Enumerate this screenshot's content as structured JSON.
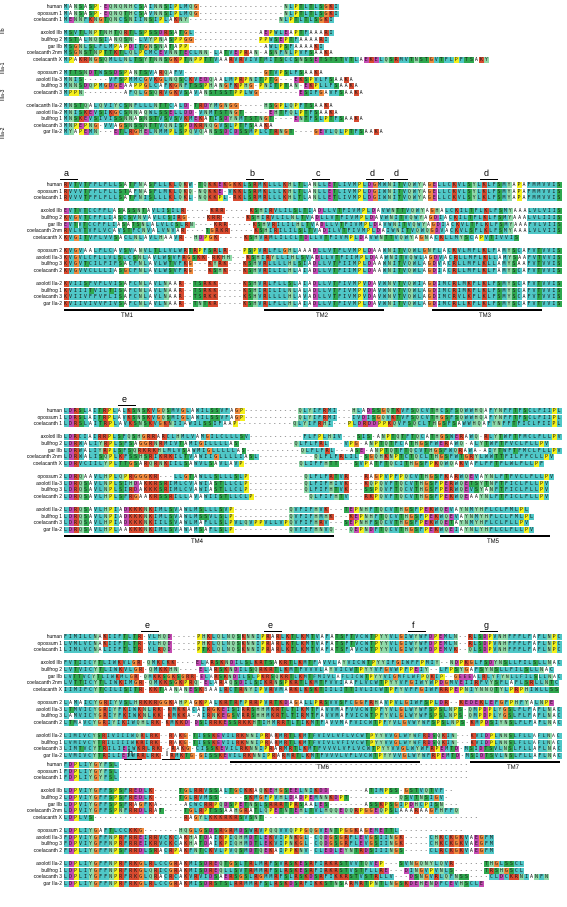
{
  "colors": {
    "hydrophobic": "#4fc7c7",
    "green": "#2fa84f",
    "orange": "#f08a3e",
    "magenta": "#c44bb2",
    "yellow": "#f4f01c",
    "red": "#d84a2f",
    "gray": "#b9b9b9"
  },
  "group_labels": [
    "IIb",
    "IIIa-1",
    "IIIa-3",
    "IIIa-2"
  ],
  "blocks": [
    {
      "rows": [
        {
          "label": "human",
          "seq": "MANSASP-EQNQNHCSAINNSIPLMQG-----------------NLPTLTLSGKI"
        },
        {
          "label": "opossum 1",
          "seq": "MANSASP-EQNQTHCSAVNNSIPLMQG-----------------NLPTLTLSGKI"
        },
        {
          "label": "coelacanth 1",
          "seq": "MENNFKNGTQNCSNIINSIPLAKNY------------------NLPTLTLSGKI"
        },
        {
          "label": "",
          "seq": ""
        },
        {
          "label": "axolotl IIb",
          "seq": "MSVTLNPTNHTQRTLSPSSDRSATGL-------------AEPWLEAPTFAAARI"
        },
        {
          "label": "bullfrog 2",
          "seq": "MSTALNQSIANQSN-LVYPNASPPGG-------------PPWSEPTFAAAARI"
        },
        {
          "label": "gar IIb",
          "seq": "MSGNLSLFLMPAPDITGNSNATAPP---------------AWLPSFAAAAKI"
        },
        {
          "label": "coelacanth 2nm",
          "seq": "MSGNSTNPTTKTLQLPCMCEVNNTECLNN-LATVEPRAN-ASNFNLPVFSAAKA"
        },
        {
          "label": "coelacanth X",
          "seq": "MPAKRNGSQMLLNLTSYTNNSGKPTNPPTTVAARVRVIVTMITSCCSNSSETSTSTVTLAEKELQSRMVTNSTGVTFLPFTSAKY"
        },
        {
          "label": "",
          "seq": ""
        },
        {
          "label": "opossum 2",
          "seq": "MTTSNDTWSSDSPANTSVARQAFV----------------GTVPSLFSAAKA"
        },
        {
          "label": "axolotl IIa-3",
          "seq": "MNIS-----VFSPMMCGVKGLNQSCKVEDQAALMPRPNITPTG---EKSPVLFSAAKA"
        },
        {
          "label": "bullfrog 3",
          "seq": "MNNSDQPMGDGEAAPPGLCAFKGNFTSSPHANGFKPHG-PNITPTAN-EKPLLFSAAKA"
        },
        {
          "label": "coelacanth 3",
          "seq": "MPPN--------AFQLGSQRVGKVSAVANSTSSTPPLWG--------ESIFGAVFSAAKA"
        },
        {
          "label": "",
          "seq": ""
        },
        {
          "label": "coelacanth IIa-2",
          "seq": "MNSTQALQVIYCSNFLLLNTTCALD-TRDYMGNGG-----HSGPLQPFTSAAKA"
        },
        {
          "label": "axolotl IIa-2",
          "seq": "MNISKEVSIKGCSNNAQWLSSELLDD-VNMTSTNGT-----EHTFQLPTFSAAKA"
        },
        {
          "label": "bullfrog 1",
          "seq": "MNSKEVSIVISSNNASNSTVSVSVKMEKATISDYNMTSTNGT----ENTFSLPTFSAAKA"
        },
        {
          "label": "coelacanth 3",
          "seq": "MNPEPNG-VVAGSNSSNTTVQNISPDKRNQGVSLPTFSAAKA"
        },
        {
          "label": "gar IIa-2",
          "seq": "MYAPEMN---ETLRGHELNMMPLSPQVQANSSDCDSSMPLCTRNGT----GEVLQLPTFSAAKA"
        }
      ]
    },
    {
      "rows": [
        {
          "label": "human",
          "seq": "RVTVTFFLFLLSATFNASFLLKLQKW-TQKKEKGKKLSRMKLLLKHLTLANLLETLIVMPLDGMWNITVQWYAGELLCKVLSYLKLFSMYAPAFMMVVIS"
        },
        {
          "label": "opossum 1",
          "seq": "RVVVTFFLFLLSTAFNASFLMKLQKQ-NQKKE-VKKLSRMKLLLKHLTLANLLETLIVMPLDGIWNITVQWYAGELLCKVLSYLKLFSMYAPAFMMVVIS"
        },
        {
          "label": "coelacanth 1",
          "seq": "RVVVTFFLFLLSATFNISLLLKLQKL-NQKKPL-RKLSRMRLLLKHLTLANLLETLIVMPLDGIWNITVQWYAGELLCKVLSYLKLFSMYAPAFMMVVIS"
        },
        {
          "label": "",
          "seq": ""
        },
        {
          "label": "axolotl IIb",
          "seq": "EVTVTCCFFLASASSNTAVLISILR-----KRR-----KSHIRVLILSLTIADLLVTFIVMPLDAVWNTTVQWYAGHALCKILTFLKLFSMYAAALVLVIIS"
        },
        {
          "label": "bullfrog 2",
          "seq": "KVGVTCFFLIASCSVNVAVLCSIRG----KRR-----KSHIRVLILNLTVADLLVTFIVMPLDAVWNITVQWYAGDIACKILTFLKLFSMYAAALVLIIIS"
        },
        {
          "label": "gar IIb",
          "seq": "EVTVTCCFFLIASATSNLALVLCSLRN----KRR-----KSHVRILILHLTVADLLVTFIVMPLDAVWNITVQWYAGDIACKVLTFLKLFSMYAAAFVLVIIS"
        },
        {
          "label": "coelacanth 2nm",
          "seq": "RVLVTVFLVCAVSTFCNVALVNVAR----TGRKR-----KSHIRILILSLTVADILVTFIVMPLDAIWNITVQWQGDVACKVLSFLKLFSMYAAALVLVIIS"
        },
        {
          "label": "coelacanth X",
          "seq": "KVGITVFLVVSACLNLAVLHAAVR--HDPGK-----KSHVRMLILCLTDLLVTFIVMPLDAVWNTTVQWYAGNACKLLMYSCAPVTIVVIS"
        },
        {
          "label": "",
          "seq": ""
        },
        {
          "label": "opossum 2",
          "seq": "KVGVAALFLCAVSVANVLTLLVLWRTRPFSRLR---PSPVRLFLGHLAAADLLVTFLVMPLDAAWNITVQWLGNFLACKVLMFLKLFAMYSCAFVTVVIS"
        },
        {
          "label": "axolotl IIa-3",
          "seq": "KVGVLCFLLVLSLCSNLAVLWSVFRGSKK-RKHH---KSHIRYLLIHLSVADLLVTFIIMPLDAAWNITVQWLAGDVACRLLMFLKLLAMYSAAFVTVVIS"
        },
        {
          "label": "bullfrog 3",
          "seq": "KVGVTCILFIFSACFNLAVLWTVFKG---KYRK---KSHVRLLLLHLSIADLLVTFIIMPLDAAWNITVQWLAGDVACRLLMFLKLLAMYSAAFVTVVIS"
        },
        {
          "label": "coelacanth 2",
          "seq": "KVGVVCLLLIASGCFNLAVLWSVFRG---KSHK---KSHVRILILHLAIADLLVTFIIMPLDAAWNITVQWLAGDIACRLLMFLKLFAMYSCAFVTVVIS"
        },
        {
          "label": "",
          "seq": ""
        },
        {
          "label": "axolotl IIa-2",
          "seq": "KVIISFVFLVISAFCNLAVLNAAR--TSRKK-----KSHVRLFLLSLAIADLLVTFIVMPVDAVWNVTVQWIAGDIMCRLMKFLKLFSMYSCAFVTVVIS"
        },
        {
          "label": "bullfrog 1",
          "seq": "KVIIITVILTISAFCNLAVLNAAR--TSRKK-----KSHIRILILNLALADLLVTFIVMPVDAVWNVTVQWLAGDIMCRIMKFLKLFSMYSCAFVTVVIS"
        },
        {
          "label": "coelacanth 3",
          "seq": "KVIIVFFVFLISAFCNLAVLNAAR--TSRKK-----KSHVRLLLLHLAVADLLVTFIVMPVDAVWNVTVQWLAGDIMCRVLKFLKLFSMYSCAFVTVVIS"
        },
        {
          "label": "gar IIa-2",
          "seq": "KVIIVIVVFIVSAFCNLAVLNAAR--TNTKR-----KSHVRLFLLHLAIADLLVTFIVMPLDAVWNITVQWLAGDIMCRLLKFLKLFSMYSCAFVTVVIS"
        }
      ],
      "tm_labels": [
        "TM1",
        "TM2",
        "TM3"
      ],
      "marks": [
        "a",
        "b",
        "c",
        "d",
        "d",
        "d"
      ]
    },
    {
      "rows": [
        {
          "label": "human",
          "seq": "LDRSLAITRPLALKSNSKVGQSMVGLAWILSSVFAGP-----------QLYIFRMI---HLADSSGQTKVFSQCVTHCSFSQWWHQAFYNFFTFSCLFIIPL"
        },
        {
          "label": "opossum 1",
          "seq": "LDRSLAITRPLAVKSNSKVGQSMIGLAWILSSVFAGP-----------QLYIFRMI---IVDISGQVKTVFSQCVTHGSFSQWWHQAFYNFFTFSCLFIIPL"
        },
        {
          "label": "coelacanth 1",
          "seq": "LDRSLAITRPLAVKSNSKVGKNIIAWILSSIFAAP-----------QLYIFRHI---PLDRDDPPKQVFSQCLTHGSFSAWWHQAFYNFFTFICLFIIPL"
        },
        {
          "label": "",
          "seq": ""
        },
        {
          "label": "axolotl IIb",
          "seq": "LDRCIAIRRPLSFQSHGRRARCLHMLVAMGILCLLLSV-----------FLFPLHIV---SIS-ANPTQTFTQCATHGSWERAWQ-RLYTWFTFMCLFLLPV"
        },
        {
          "label": "bullfrog 2",
          "seq": "LDRWALIYRPLSFSAGGRNRMIVTAMIGILLLLAS-----------QLFLFRL---VPG-ANPTQTFCATHGSFWERAWQ-ALYTWFTFVCLFLLPV"
        },
        {
          "label": "gar IIb",
          "seq": "LDRWALIYRPLSFSQRKRKHLMLVSAWMIGLLLLLAS-----------QLFLFRL---ASE-ANPTQTFTQCVTHGSFWQRAWA-AIYTWFTFMCLFLLPV"
        },
        {
          "label": "coelacanth 2nm",
          "seq": "LDRWALISQPLKFSSHSRIKRKILTVAWIIGLLLLIASL-----------QLFLFRLIL-SGQHKNPTCTQCLTHGSFWTGRYLWWTTFILFFCLLPV"
        },
        {
          "label": "coelacanth X",
          "seq": "LDRVCIILYPLTTGSARQRNKIILSAWVLSAVLAVP-----------QLIFFHTT---SVPATFTQCITHGSFPKQWQAKVAFLFFTFLWLFLLPF"
        },
        {
          "label": "",
          "seq": ""
        },
        {
          "label": "opossum 2",
          "seq": "LDRQAAVLHPLQPRGGGKR---LLGTAWLLSLLLSLP-----------QLFLFRTVR---RAGPVPFPQCVTHGSFKARWQEVAYNLFTFVCLFLLPV"
        },
        {
          "label": "axolotl IIa-3",
          "seq": "LDRQSAVLNPLSIHDAKKRSRIMLCVAWIASTLLCLP-----------QLFIFHIVK---KQPQVFTQCVTHGSFPERWQETSYTNFTFICLFLLPV"
        },
        {
          "label": "bullfrog 3",
          "seq": "LDRQSAVLNPLSIRDAKKKSRIMLCVAWIASTLLCLP-----------QLFIFHTVK---SSPQVFTQCVTHGSFPERWQEVSYANFTFICLFLLPV"
        },
        {
          "label": "coelacanth 2",
          "seq": "LDRQSAVLHPLSFRGAAKRSSRILLAVAWIISTLLCLP-----------QLFIFHTV---RKPQVFTQCVTHGSFPEKWQEAAYNLFTFICLFLLPV"
        },
        {
          "label": "",
          "seq": ""
        },
        {
          "label": "axolotl IIa-2",
          "seq": "LDRQSAVLHPIADKKKNKIMLSVAWLMSLLLSVP-----------QVFIFHVK---TEPNHFTQCVTHGSFPEKWQEVAYNMYHFLCLFMLPL"
        },
        {
          "label": "bullfrog 1",
          "seq": "LDRQSAVLNPIADKKKNKIMLSVAWLMSSVLSLP-----------QVFIFHMHK---KEPNHFTQCVTHGSFPEKWQEVAYNMYHFLCLFMLPL"
        },
        {
          "label": "coelacanth 3",
          "seq": "LDRQSAVLHPIADKKKNKIILSVAWLMAFLLSLPVLQVPPVLLVPQVFIFHRV---SEPNHFSQCVTHGSFPEKWQETAYNMYHFLCLFLLPV"
        },
        {
          "label": "gar IIa-2",
          "seq": "LDRQSAVLHPLAAKKKNKIMLSVAWAMSAFLSLP-----------QVFIFHNVQ---QEPNDFTQCVTHGSFPEKWQEIAYNLYHFLCLFLLPV"
        }
      ],
      "tm_labels": [
        "TM4",
        "TM5"
      ],
      "marks": [
        "e"
      ]
    },
    {
      "rows": [
        {
          "label": "human",
          "seq": "FIMILCNAKIIFTLTR-VLHQD-----PHKLQLNQSKNNIPRARLKTLKMTVAFATSFTVCWTPYYVLGIWYWFDPEMLN--RLSDPVNHFFFLFAFLNPC"
        },
        {
          "label": "opossum 1",
          "seq": "LVMLVCNAKIIFTLTR-VLHQD-----PHKLQLNQSKNNIPRARLKTLKMTVAFATSFTVCWTPYYVLGIWYWFDPEMLN--RLSDPVNHFFFLFAFLNPC"
        },
        {
          "label": "coelacanth 1",
          "seq": "LIMLVCNALIIFTLTR-VLRQD-----PTKLQLNQSKNNIPRARLKTLKMTVAFATSFAVCWTPYYVLGIWYWFDPEMVK--QLSDPVNHFFFLFAFLNPC"
        },
        {
          "label": "",
          "seq": ""
        },
        {
          "label": "axolotl IIb",
          "seq": "FVTIICYTLIWKVLGR-QMKCKK----ELARSKNDILSLKRTSAKRTLKMTFAVVLAYVICWTPYYIFGIWFFPMIY--NDPKGLFSDYNSLLFILSLLNAC"
        },
        {
          "label": "bullfrog 2",
          "seq": "LVTVICYTLIWKVLGR-QMKKHN----ELARSKNDILSQRKRTLKMTFVVVLAYVICWTPYYVFGVWPFPEIY--LFPSYGAFSYNSLLFILSLLNAC"
        },
        {
          "label": "gar IIb",
          "seq": "LVTTVCYTLIWKMLGR-QMKKSGKSGRR-ELARSKNDILSLPKRSQKRTLKMTFMIVLAFLICWTPYYVIGMFLWFPQKIP--GEEEALRLYFYNLLFILSLLNAC"
        },
        {
          "label": "coelacanth 2nm",
          "seq": "LVTTICYTLIWKIMGR-QMKKSGKPRQ-ELARAQSDILSIKRNSPKRTLKMTFVVIAAFLVCWTPYYVFGIWYWPDGMVEIIRFVYSFLAFLSRLLNTC"
        },
        {
          "label": "coelacanth X",
          "seq": "IIMIFCYTCILISITR-KKTAANANESKBAALRCTRNYIPVRVMARKLKSKTIILITTIVLICWTPFYVFFGIWFRRPEPNIYNNQTYLPRPHIWLLSS"
        },
        {
          "label": "",
          "seq": ""
        },
        {
          "label": "opossum 2",
          "seq": "LAMAICYGRIYVSLHRKKRGGKAHPAGKPALKRTRFPRRPVRTKDAGALLPRSVVSFCGGFRHAVPVLGIWFSPLDR--KEDEKLEFGFPHFYALNPE"
        },
        {
          "label": "axolotl IIa-3",
          "seq": "LTMVICYGRIYFKIWKNLRK-KMKKACAIRGKEISIRRSHHMKRTLTIKMTFAVVMAFVVCWTPFYVLGLWYWFSPSLNPS-QMPDPLYGSLFLFAFLNAC"
        },
        {
          "label": "bullfrog 3",
          "seq": "LAMVICYGRIYFKIWKNLKK-KMKKA-AIRNKEGSVRRSHHMKRTLTIRMTFAVVMAFVICWTPFYVLGLWYWFSPSLNPS-QMPDPLYGSLFLFAFLNAC"
        },
        {
          "label": "coelacanth 2",
          "seq": "LTMAVCYGRIYIKIWQHLRK-KMKKD-DSIRRKESSRKKHTIHMRRTLTIKMTFAVVMAFVICWTPFYVLGVWYWFSPSLNPS-KMPDSIYNSLFLFAFLNAC"
        },
        {
          "label": "",
          "seq": ""
        },
        {
          "label": "axolotl IIa-2",
          "seq": "LIMIVCYSRIVIIIWQRLRK--RAKG-TISSKEVILRKNNIPRARMRTLKMTFVIVLVFLVCWTPYYVVGLWYWFRDSQKIN---KVIDPLNNSLFLLAFLNAC"
        },
        {
          "label": "bullfrog 1",
          "seq": "LVMIVCYTRILIIIWKRIRK--RAKG-TISSKEVILRKNNIPRARMRTLKMTFVIVLVFIVCWTPYYVVGLWYWFRDSQKIN---KVIDPLNNSLFLLAFLNAC"
        },
        {
          "label": "coelacanth 3",
          "seq": "LIMTVCYTRILIEIWKRLRK--RAKG-CISSKEVILRKNNIPRARMRTLKMTFVVVLVFLVCWTPYYVVGLWYWFRPEMTD-MSIDTSVLNSLFLLAFLNAC"
        },
        {
          "label": "gar IIa-2",
          "seq": "LVMIVCYTRILIEIWRRLRK--RMKTG-GISSKEVILRKNNIPRARMRTLKMTFVVVLVFLVCWTPYYVVGLWYWFRPEMTD-MSIDTSVLNSLFLLAFLNAC"
        }
      ],
      "tm_labels": [
        "TM6",
        "TM7"
      ],
      "marks": [
        "e",
        "e",
        "f",
        "g"
      ]
    },
    {
      "rows": [
        {
          "label": "human",
          "seq": "FDPLIYGYFSL----------------------------------------------------------------------"
        },
        {
          "label": "opossum 1",
          "seq": "FDPLIYGYFSL----------------------------------------------------------------------"
        },
        {
          "label": "coelacanth 1",
          "seq": "FDPLIYGYFSL----------------------------------------------------------------------"
        },
        {
          "label": "",
          "seq": ""
        },
        {
          "label": "axolotl IIb",
          "seq": "LDPVIYGFFSPSFREDLK-----TGLRRVSSALTGCKKAQKEHGSEELNIKDD-------ATIMPSS-GSTVQTVF--"
        },
        {
          "label": "bullfrog 2",
          "seq": "LDPVIYGFFSPSFREDLK-----TGLRVMSS-----SKMGFPVHLDADPEMNNKDPT----------QSVTNSIGV-"
        },
        {
          "label": "gar IIb",
          "seq": "LDPVIYGFFSPSFRAGFKA-----ACWCRRPQDSPETNSLSRRRTPRSAALES-------ASSKPSGIPDHCPISN---"
        },
        {
          "label": "coelacanth 2nm",
          "seq": "LDPVIYGFFSPNFRRDLRAT----TGLRPTSSAAHGRATLQPETNTEHLTVLHQQEQQRPGGEQPSLAAARAAGFHFFQ"
        },
        {
          "label": "coelacanth X",
          "seq": "LDPLVS------------------RAGYLKKKRKRSVSNT-------------------------------------------"
        },
        {
          "label": "",
          "seq": ""
        },
        {
          "label": "opossum 2",
          "seq": "LDPLIYGAFTLCCKKG-------HQGLGSDSRGRMDSWRVPQQVVQPPGQGVENTPGGKAGEMETTL-------------"
        },
        {
          "label": "axolotl IIa-3",
          "seq": "FDPVIYGFFNPRFRREIRRVCKCAKHATDAIKPIQHMDTLEKVIPNKGL-CQDGSGRFLEVGSIINGK-----CHKCKGKVAEGFM"
        },
        {
          "label": "bullfrog 3",
          "seq": "FDPVIYGFFNPRFRREIKRVCKCAKHATDAIKPIQHMDTLEKVIPNKGL-CQDGSGRFLEVGSIINGK-----CHKCKGKVAEGFM"
        },
        {
          "label": "coelacanth 2",
          "seq": "FDPLIYGFFNPSFRRDLSRACRPAKFNTCKVLPVQSMDTQEKAIPPKNV-CLEDLEYNTRDSIIINGS-----CLRCKGKVAEGFM"
        },
        {
          "label": "",
          "seq": ""
        },
        {
          "label": "axolotl IIa-2",
          "seq": "LDPLIYGFFNPRFRKGLRLCCGRAKMISDREQTGSLTRLMRFSVRSKESRFIRKRSTVVTQVEP---SVNGQNYLQVR------THGLSSCL"
        },
        {
          "label": "bullfrog 1",
          "seq": "LDPLIYGFFNPRFRKGLQRICGRAKMISDREQLLSVTRMMRFSLRSKESRFIRKRSTVSTFLLRE---DINGVPVNLS------TRSHGSCL"
        },
        {
          "label": "coelacanth 3",
          "seq": "LDPLIYGFFNPRFRKGLQRACRCAKVRVIDSAERSGSLRGMMRFSLRSKDSRFIKKRSTVSTRLLV---DSNGVRLQFNSS----CLDCKRNIANFN"
        },
        {
          "label": "gar IIa-2",
          "seq": "LDPLIYGFFNPRFRKGLRLCCGRAKMISDRSTSLRRMMRFSLRSKDSRFIKKSTNSARMRTPNTLNGSKDEHENDFCEVHSCLE"
        }
      ],
      "marks": [
        "h",
        "i"
      ]
    }
  ]
}
